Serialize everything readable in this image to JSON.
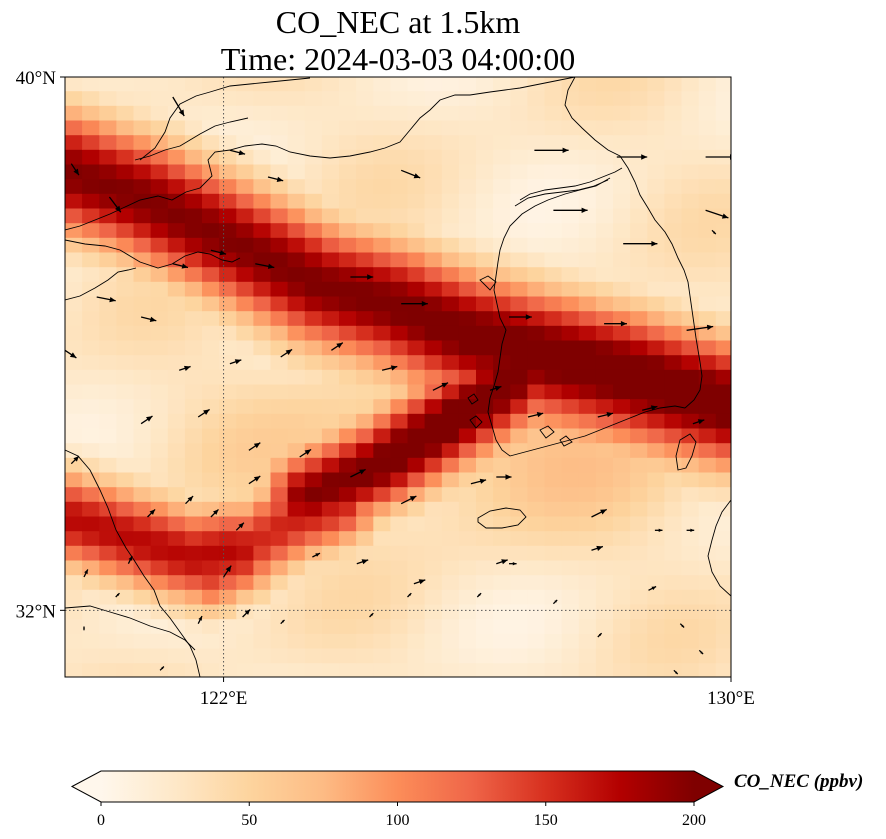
{
  "title": {
    "line1": "CO_NEC at 1.5km",
    "line2": "Time: 2024-03-03 04:00:00"
  },
  "map": {
    "lon_range": [
      119.5,
      130
    ],
    "lat_range": [
      31,
      40
    ],
    "grid_lons": [
      122
    ],
    "grid_lats": [
      32
    ],
    "x_ticks": [
      {
        "lon": 122,
        "label": "122°E"
      },
      {
        "lon": 130,
        "label": "130°E"
      }
    ],
    "y_ticks": [
      {
        "lat": 40,
        "label": "40°N"
      },
      {
        "lat": 32,
        "label": "32°N"
      }
    ],
    "plume_bands": [
      {
        "name": "northern",
        "points": [
          [
            119.5,
            38.6
          ],
          [
            120.7,
            38.2
          ],
          [
            122,
            37.6
          ],
          [
            123.5,
            36.9
          ],
          [
            124.7,
            36.6
          ],
          [
            125.8,
            36.2
          ],
          [
            127,
            35.9
          ],
          [
            128.3,
            35.6
          ],
          [
            130,
            35.1
          ]
        ],
        "peak": 200,
        "width_deg": 0.65
      },
      {
        "name": "central",
        "points": [
          [
            123.3,
            33.7
          ],
          [
            124.5,
            34.2
          ],
          [
            125.8,
            35.0
          ],
          [
            126.6,
            35.5
          ]
        ],
        "peak": 185,
        "width_deg": 0.45
      },
      {
        "name": "southern",
        "points": [
          [
            119.5,
            33.4
          ],
          [
            120.5,
            33.1
          ],
          [
            121.5,
            32.8
          ],
          [
            122.2,
            32.9
          ]
        ],
        "peak": 170,
        "width_deg": 0.5
      },
      {
        "name": "central-link",
        "points": [
          [
            121.8,
            32.6
          ],
          [
            123.0,
            33.3
          ],
          [
            123.8,
            33.6
          ]
        ],
        "peak": 150,
        "width_deg": 0.45
      }
    ],
    "wind_arrows": [
      [
        121.2,
        39.7,
        0.3,
        -0.5
      ],
      [
        119.6,
        38.7,
        0.2,
        -0.3
      ],
      [
        120.2,
        38.2,
        0.3,
        -0.4
      ],
      [
        122.1,
        38.9,
        0.4,
        -0.1
      ],
      [
        122.7,
        38.5,
        0.4,
        -0.1
      ],
      [
        124.8,
        38.6,
        0.5,
        -0.2
      ],
      [
        126.9,
        38.9,
        0.9,
        0.0
      ],
      [
        128.2,
        38.8,
        0.8,
        0.0
      ],
      [
        129.6,
        38.8,
        0.8,
        0.0
      ],
      [
        129.6,
        38.0,
        0.6,
        -0.2
      ],
      [
        127.2,
        38.0,
        0.9,
        0.0
      ],
      [
        128.3,
        37.5,
        0.9,
        0.0
      ],
      [
        129.7,
        37.7,
        0.1,
        -0.1
      ],
      [
        121.2,
        37.2,
        0.4,
        -0.1
      ],
      [
        122.5,
        37.2,
        0.5,
        -0.1
      ],
      [
        124.0,
        37.0,
        0.6,
        0.0
      ],
      [
        124.8,
        36.6,
        0.7,
        0.0
      ],
      [
        126.5,
        36.4,
        0.6,
        0.0
      ],
      [
        128.0,
        36.3,
        0.6,
        0.0
      ],
      [
        129.3,
        36.2,
        0.7,
        0.1
      ],
      [
        121.8,
        37.4,
        0.4,
        -0.1
      ],
      [
        119.5,
        35.9,
        0.3,
        -0.2
      ],
      [
        120.0,
        36.7,
        0.5,
        -0.1
      ],
      [
        120.7,
        36.4,
        0.4,
        -0.1
      ],
      [
        121.3,
        35.6,
        0.3,
        0.1
      ],
      [
        122.1,
        35.7,
        0.3,
        0.1
      ],
      [
        122.9,
        35.8,
        0.3,
        0.2
      ],
      [
        123.7,
        35.9,
        0.3,
        0.2
      ],
      [
        124.5,
        35.6,
        0.4,
        0.1
      ],
      [
        125.3,
        35.3,
        0.4,
        0.2
      ],
      [
        126.2,
        35.3,
        0.3,
        0.1
      ],
      [
        126.8,
        34.9,
        0.4,
        0.1
      ],
      [
        127.9,
        34.9,
        0.4,
        0.1
      ],
      [
        128.6,
        35.0,
        0.4,
        0.1
      ],
      [
        129.4,
        34.8,
        0.3,
        0.1
      ],
      [
        119.6,
        34.2,
        0.2,
        0.2
      ],
      [
        120.7,
        34.8,
        0.3,
        0.2
      ],
      [
        121.6,
        34.9,
        0.3,
        0.2
      ],
      [
        122.4,
        34.4,
        0.3,
        0.2
      ],
      [
        123.2,
        34.3,
        0.3,
        0.2
      ],
      [
        124.0,
        34.0,
        0.4,
        0.2
      ],
      [
        124.8,
        33.6,
        0.4,
        0.2
      ],
      [
        125.9,
        33.9,
        0.4,
        0.1
      ],
      [
        126.3,
        34.0,
        0.4,
        0.0
      ],
      [
        120.8,
        33.4,
        0.2,
        0.2
      ],
      [
        121.8,
        33.4,
        0.2,
        0.2
      ],
      [
        122.4,
        33.9,
        0.3,
        0.2
      ],
      [
        123.4,
        32.8,
        0.2,
        0.1
      ],
      [
        124.1,
        32.7,
        0.3,
        0.1
      ],
      [
        125.0,
        32.4,
        0.3,
        0.1
      ],
      [
        126.3,
        32.7,
        0.3,
        0.1
      ],
      [
        127.8,
        32.9,
        0.3,
        0.1
      ],
      [
        121.4,
        33.6,
        0.2,
        0.2
      ],
      [
        122.0,
        32.5,
        0.2,
        0.3
      ],
      [
        121.6,
        31.8,
        0.1,
        0.2
      ],
      [
        120.3,
        32.2,
        0.1,
        0.1
      ],
      [
        119.8,
        31.7,
        0.0,
        0.1
      ],
      [
        121.0,
        31.1,
        0.1,
        0.1
      ],
      [
        122.3,
        31.9,
        0.2,
        0.2
      ],
      [
        122.9,
        31.8,
        0.1,
        0.1
      ],
      [
        124.3,
        31.9,
        0.1,
        0.1
      ],
      [
        124.9,
        32.2,
        0.1,
        0.1
      ],
      [
        126.0,
        32.2,
        0.1,
        0.1
      ],
      [
        126.5,
        32.7,
        0.2,
        0.0
      ],
      [
        127.2,
        32.1,
        0.1,
        0.1
      ],
      [
        129.2,
        31.8,
        0.1,
        -0.1
      ],
      [
        129.5,
        31.4,
        0.1,
        -0.1
      ],
      [
        128.7,
        32.3,
        0.2,
        0.1
      ],
      [
        127.8,
        33.4,
        0.4,
        0.2
      ],
      [
        128.8,
        33.2,
        0.2,
        0.0
      ],
      [
        129.3,
        33.2,
        0.2,
        0.0
      ],
      [
        119.8,
        32.5,
        0.1,
        0.2
      ],
      [
        120.5,
        32.7,
        0.1,
        0.2
      ],
      [
        122.2,
        33.2,
        0.2,
        0.2
      ],
      [
        127.9,
        31.6,
        0.1,
        0.1
      ],
      [
        129.1,
        31.1,
        0.1,
        -0.1
      ]
    ]
  },
  "colorbar": {
    "label": "CO_NEC (ppbv)",
    "min": 0,
    "max": 200,
    "ticks": [
      0,
      50,
      100,
      150,
      200
    ],
    "tick_labels": [
      "0",
      "50",
      "100",
      "150",
      "200"
    ],
    "extend": "both",
    "colormap": "OrRd",
    "color_stops": [
      "#fff7ec",
      "#fee8c8",
      "#fdd49e",
      "#fdbb84",
      "#fc8d59",
      "#ef6548",
      "#d7301f",
      "#b30000",
      "#7f0000"
    ]
  },
  "colors": {
    "coastline": "#000000",
    "gridline": "#555555",
    "arrow": "#000000",
    "background": "#fff7ec"
  }
}
